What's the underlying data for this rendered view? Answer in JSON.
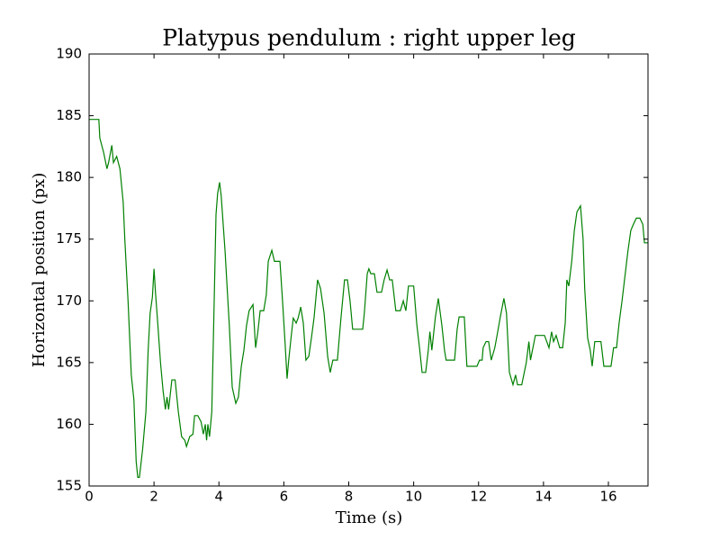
{
  "chart_data": {
    "type": "line",
    "title": "Platypus pendulum : right upper leg",
    "xlabel": "Time (s)",
    "ylabel": "Horizontal position (px)",
    "xlim": [
      0,
      17.22
    ],
    "ylim": [
      155,
      190
    ],
    "xticks": [
      0,
      2,
      4,
      6,
      8,
      10,
      12,
      14,
      16
    ],
    "yticks": [
      155,
      160,
      165,
      170,
      175,
      180,
      185,
      190
    ],
    "series": [
      {
        "name": "right upper leg",
        "color": "#008000",
        "x": [
          0,
          0.3,
          0.33,
          0.45,
          0.55,
          0.6,
          0.7,
          0.75,
          0.85,
          0.95,
          1.05,
          1.1,
          1.2,
          1.3,
          1.38,
          1.45,
          1.5,
          1.55,
          1.65,
          1.75,
          1.82,
          1.88,
          1.95,
          2.0,
          2.05,
          2.12,
          2.2,
          2.28,
          2.35,
          2.4,
          2.45,
          2.55,
          2.65,
          2.75,
          2.85,
          2.95,
          3.0,
          3.1,
          3.2,
          3.25,
          3.35,
          3.45,
          3.52,
          3.58,
          3.62,
          3.66,
          3.71,
          3.78,
          3.83,
          3.91,
          3.96,
          4.02,
          4.07,
          4.19,
          4.32,
          4.41,
          4.52,
          4.6,
          4.69,
          4.77,
          4.85,
          4.93,
          5.05,
          5.13,
          5.2,
          5.27,
          5.38,
          5.46,
          5.52,
          5.63,
          5.71,
          5.88,
          5.96,
          6.04,
          6.1,
          6.15,
          6.23,
          6.29,
          6.38,
          6.44,
          6.52,
          6.6,
          6.68,
          6.77,
          6.85,
          6.93,
          7.04,
          7.13,
          7.24,
          7.35,
          7.43,
          7.51,
          7.65,
          7.76,
          7.87,
          7.96,
          8.04,
          8.12,
          8.43,
          8.48,
          8.57,
          8.62,
          8.68,
          8.79,
          8.87,
          9.01,
          9.09,
          9.18,
          9.26,
          9.34,
          9.45,
          9.59,
          9.68,
          9.76,
          9.84,
          10.0,
          10.1,
          10.18,
          10.26,
          10.37,
          10.45,
          10.5,
          10.56,
          10.67,
          10.76,
          10.87,
          10.95,
          11.0,
          11.26,
          11.34,
          11.4,
          11.56,
          11.64,
          11.95,
          12.03,
          12.11,
          12.14,
          12.23,
          12.31,
          12.39,
          12.5,
          12.59,
          12.67,
          12.78,
          12.86,
          12.95,
          13.06,
          13.14,
          13.2,
          13.33,
          13.47,
          13.55,
          13.6,
          13.75,
          14.03,
          14.17,
          14.25,
          14.31,
          14.39,
          14.5,
          14.59,
          14.67,
          14.72,
          14.78,
          14.87,
          14.95,
          15.03,
          15.14,
          15.22,
          15.27,
          15.36,
          15.44,
          15.5,
          15.58,
          15.77,
          15.86,
          16.08,
          16.16,
          16.25,
          16.33,
          16.42,
          16.51,
          16.6,
          16.69,
          16.77,
          16.86,
          16.97,
          17.06,
          17.11,
          17.22
        ],
        "values": [
          184.7,
          184.7,
          183.2,
          182,
          180.7,
          181.2,
          182.6,
          181.2,
          181.7,
          180.7,
          178,
          175,
          170,
          164,
          162,
          157,
          155.7,
          155.7,
          158,
          161,
          166,
          169,
          170.3,
          172.6,
          170.5,
          168,
          165,
          162.7,
          161.2,
          162.2,
          161.2,
          163.6,
          163.6,
          161,
          159,
          158.7,
          158.2,
          159,
          159.2,
          160.7,
          160.7,
          160.2,
          159.2,
          160,
          158.7,
          160,
          159,
          161,
          167,
          177,
          178.7,
          179.6,
          178.5,
          174,
          168,
          163,
          161.7,
          162.2,
          164.7,
          166,
          168,
          169.2,
          169.7,
          166.2,
          167.5,
          169.2,
          169.2,
          170.5,
          173.2,
          174.1,
          173.2,
          173.2,
          170,
          166.5,
          163.7,
          165.2,
          167.2,
          168.6,
          168.2,
          168.6,
          169.5,
          168.2,
          165.2,
          165.5,
          167,
          168.6,
          171.7,
          171,
          169,
          165.5,
          164.2,
          165.2,
          165.2,
          168.6,
          171.7,
          171.7,
          170,
          167.7,
          167.7,
          169,
          172.2,
          172.6,
          172.2,
          172.2,
          170.7,
          170.7,
          171.7,
          172.5,
          171.7,
          171.7,
          169.2,
          169.2,
          170,
          169.2,
          171.2,
          171.2,
          168,
          166.2,
          164.2,
          164.2,
          166,
          167.5,
          166,
          168.7,
          170.2,
          168,
          166,
          165.2,
          165.2,
          167.7,
          168.7,
          168.7,
          164.7,
          164.7,
          165.2,
          165.2,
          166.2,
          166.7,
          166.7,
          165.2,
          166.2,
          167.5,
          168.7,
          170.2,
          169,
          164.2,
          163.2,
          164,
          163.2,
          163.2,
          165,
          166.7,
          165.2,
          167.2,
          167.2,
          166.2,
          167.5,
          166.7,
          167.2,
          166.2,
          166.2,
          168.2,
          171.7,
          171.2,
          173.2,
          175.7,
          177.2,
          177.7,
          175,
          171,
          167,
          166,
          164.7,
          166.7,
          166.7,
          164.7,
          164.7,
          166.2,
          166.2,
          168.2,
          170,
          172,
          174,
          175.7,
          176.2,
          176.7,
          176.7,
          176.2,
          174.7,
          174.7
        ]
      }
    ]
  }
}
